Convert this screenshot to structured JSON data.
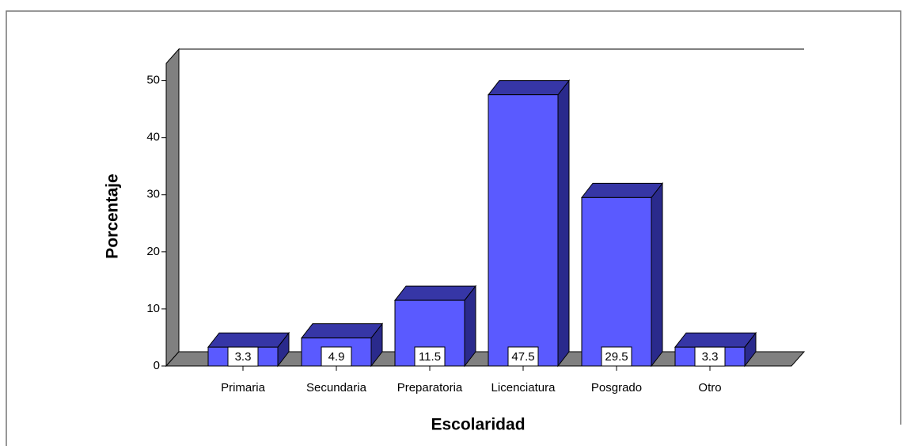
{
  "chart_data": {
    "type": "bar3d",
    "x_label": "Escolaridad",
    "y_label": "Porcentaje",
    "categories": [
      "Primaria",
      "Secundaria",
      "Preparatoria",
      "Licenciatura",
      "Posgrado",
      "Otro"
    ],
    "values": [
      3.3,
      4.9,
      11.5,
      47.5,
      29.5,
      3.3
    ],
    "color": "#5a5aff",
    "ylim": [
      0,
      53
    ],
    "yticks": [
      0,
      10,
      20,
      30,
      40,
      50
    ],
    "grid": false
  }
}
